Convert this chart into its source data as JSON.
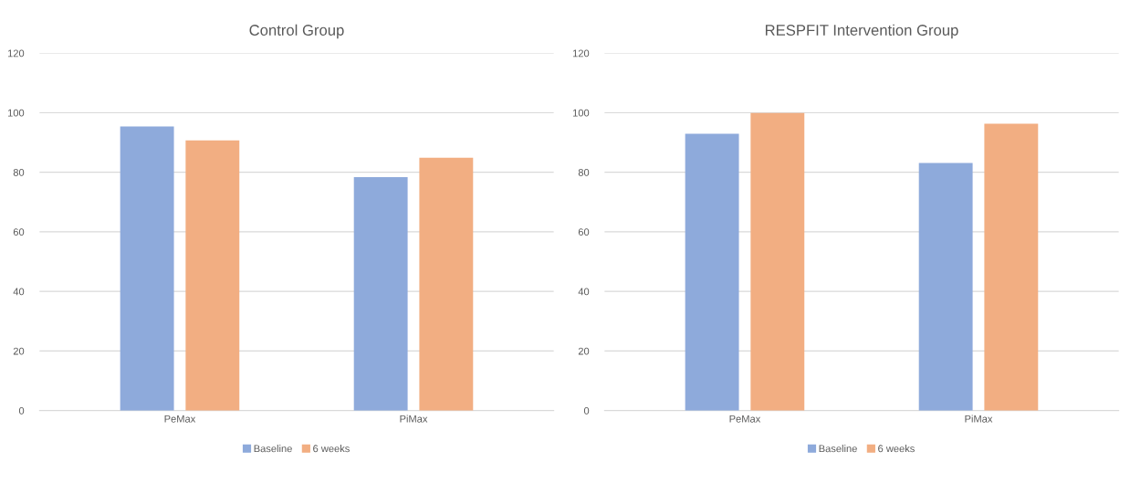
{
  "chart_data": [
    {
      "type": "bar",
      "title": "Control Group",
      "categories": [
        "PeMax",
        "PiMax"
      ],
      "series": [
        {
          "name": "Baseline",
          "color": "#8eaadb",
          "values": [
            95.4,
            78.4
          ]
        },
        {
          "name": "6 weeks",
          "color": "#f2ae82",
          "values": [
            90.7,
            84.9
          ]
        }
      ],
      "ylim": [
        0,
        120
      ],
      "yticks": [
        0,
        20,
        40,
        60,
        80,
        100,
        120
      ],
      "grid": "y",
      "legend": "bottom"
    },
    {
      "type": "bar",
      "title": "RESPFIT Intervention Group",
      "categories": [
        "PeMax",
        "PiMax"
      ],
      "series": [
        {
          "name": "Baseline",
          "color": "#8eaadb",
          "values": [
            92.9,
            83.1
          ]
        },
        {
          "name": "6 weeks",
          "color": "#f2ae82",
          "values": [
            99.9,
            96.3
          ]
        }
      ],
      "ylim": [
        0,
        120
      ],
      "yticks": [
        0,
        20,
        40,
        60,
        80,
        100,
        120
      ],
      "grid": "y",
      "legend": "bottom"
    }
  ]
}
